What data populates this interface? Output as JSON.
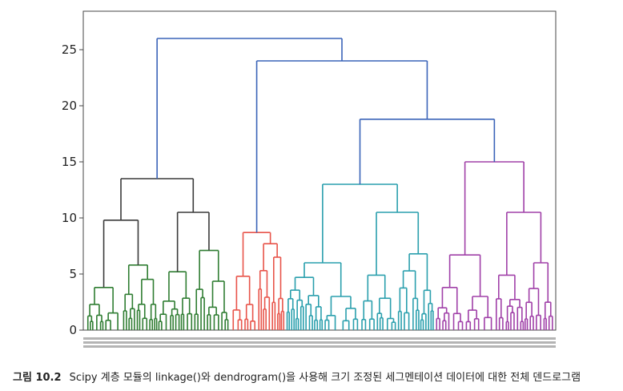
{
  "caption": {
    "label": "그림 10.2",
    "text": "Scipy 계층 모듈의 linkage()와 dendrogram()을 사용해 크기 조정된 세그멘테이션 데이터에 대한 전체 덴드로그램"
  },
  "chart_data": {
    "type": "dendrogram",
    "title": "",
    "xlabel": "",
    "ylabel": "",
    "ylim": [
      0,
      27
    ],
    "yticks": [
      0,
      5,
      10,
      15,
      20,
      25
    ],
    "grid": false,
    "colors": {
      "link_above_threshold": "#3a63b8",
      "clusters": [
        "#2f7d32",
        "#e8544a",
        "#2a9fad",
        "#a040a8"
      ],
      "cluster_internal": "#3a3a3a"
    },
    "clusters": [
      {
        "color": "#2f7d32",
        "top_merge_height": 13.5,
        "merges": [
          [
            13.5,
            9.8,
            10.5
          ],
          [
            9.8,
            3.8,
            5.8
          ],
          [
            10.5,
            5.2,
            7.1
          ],
          [
            5.8,
            4.0,
            2.5
          ],
          [
            7.1,
            3.9,
            2.6
          ]
        ]
      },
      {
        "color": "#e8544a",
        "top_merge_height": 8.7,
        "merges": [
          [
            8.7,
            4.8,
            7.7
          ],
          [
            7.7,
            5.3,
            6.5
          ],
          [
            6.5,
            4.3,
            3.5
          ]
        ]
      },
      {
        "color": "#2a9fad",
        "top_merge_height": 13.0,
        "merges": [
          [
            13.0,
            6.0,
            10.5
          ],
          [
            10.5,
            4.9,
            6.8
          ],
          [
            6.0,
            4.7,
            3.0
          ]
        ]
      },
      {
        "color": "#a040a8",
        "top_merge_height": 15.0,
        "merges": [
          [
            15.0,
            6.7,
            10.5
          ],
          [
            10.5,
            4.9,
            6.0
          ],
          [
            6.7,
            3.8,
            3.0
          ]
        ]
      }
    ],
    "upper_links": [
      {
        "height": 26.0,
        "joins": [
          "cluster_1",
          "link_24.0"
        ]
      },
      {
        "height": 24.0,
        "joins": [
          "cluster_2",
          "link_18.8"
        ]
      },
      {
        "height": 18.8,
        "joins": [
          "cluster_3",
          "cluster_4"
        ]
      }
    ]
  }
}
